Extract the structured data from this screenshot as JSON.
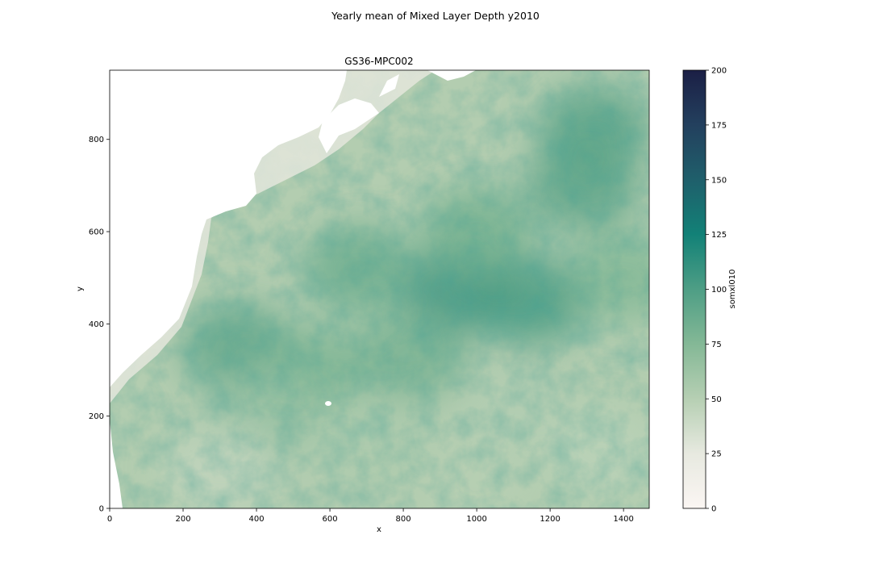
{
  "figure": {
    "suptitle": "Yearly mean of Mixed Layer Depth y2010"
  },
  "chart_data": {
    "type": "heatmap",
    "title": "GS36-MPC002",
    "xlabel": "x",
    "ylabel": "y",
    "xlim": [
      0,
      1470
    ],
    "ylim": [
      0,
      950
    ],
    "xticks": [
      "0",
      "200",
      "400",
      "600",
      "800",
      "1000",
      "1200",
      "1400"
    ],
    "yticks": [
      "0",
      "200",
      "400",
      "600",
      "800"
    ],
    "grid": false,
    "colorbar": {
      "label": "somxl010",
      "range": [
        0,
        200
      ],
      "ticks": [
        "0",
        "25",
        "50",
        "75",
        "100",
        "125",
        "150",
        "175",
        "200"
      ],
      "colors": [
        "#fbf6f3",
        "#e7e9e0",
        "#b6cfb3",
        "#84b896",
        "#4e9e85",
        "#128177",
        "#1f5f6b",
        "#23405e",
        "#1b1f45"
      ]
    },
    "field_description": "Mixed layer depth values mostly 25-100, highest (~100) in the central-eastern gyre near x 900-1200, y 400-500 and near x 1300, y 800; low (<25) near the western coastline; white land areas along the top-left (North American coast).",
    "hotspots": [
      {
        "x": 950,
        "y": 470,
        "value": 105
      },
      {
        "x": 1150,
        "y": 450,
        "value": 100
      },
      {
        "x": 1320,
        "y": 820,
        "value": 95
      },
      {
        "x": 1290,
        "y": 700,
        "value": 92
      },
      {
        "x": 680,
        "y": 520,
        "value": 85
      },
      {
        "x": 350,
        "y": 350,
        "value": 90
      },
      {
        "x": 820,
        "y": 330,
        "value": 80
      },
      {
        "x": 1000,
        "y": 600,
        "value": 82
      },
      {
        "x": 1400,
        "y": 500,
        "value": 75
      },
      {
        "x": 550,
        "y": 300,
        "value": 78
      },
      {
        "x": 420,
        "y": 200,
        "value": 65
      },
      {
        "x": 700,
        "y": 150,
        "value": 55
      },
      {
        "x": 1100,
        "y": 200,
        "value": 52
      },
      {
        "x": 1350,
        "y": 120,
        "value": 48
      },
      {
        "x": 300,
        "y": 80,
        "value": 45
      },
      {
        "x": 1000,
        "y": 50,
        "value": 50
      }
    ]
  }
}
